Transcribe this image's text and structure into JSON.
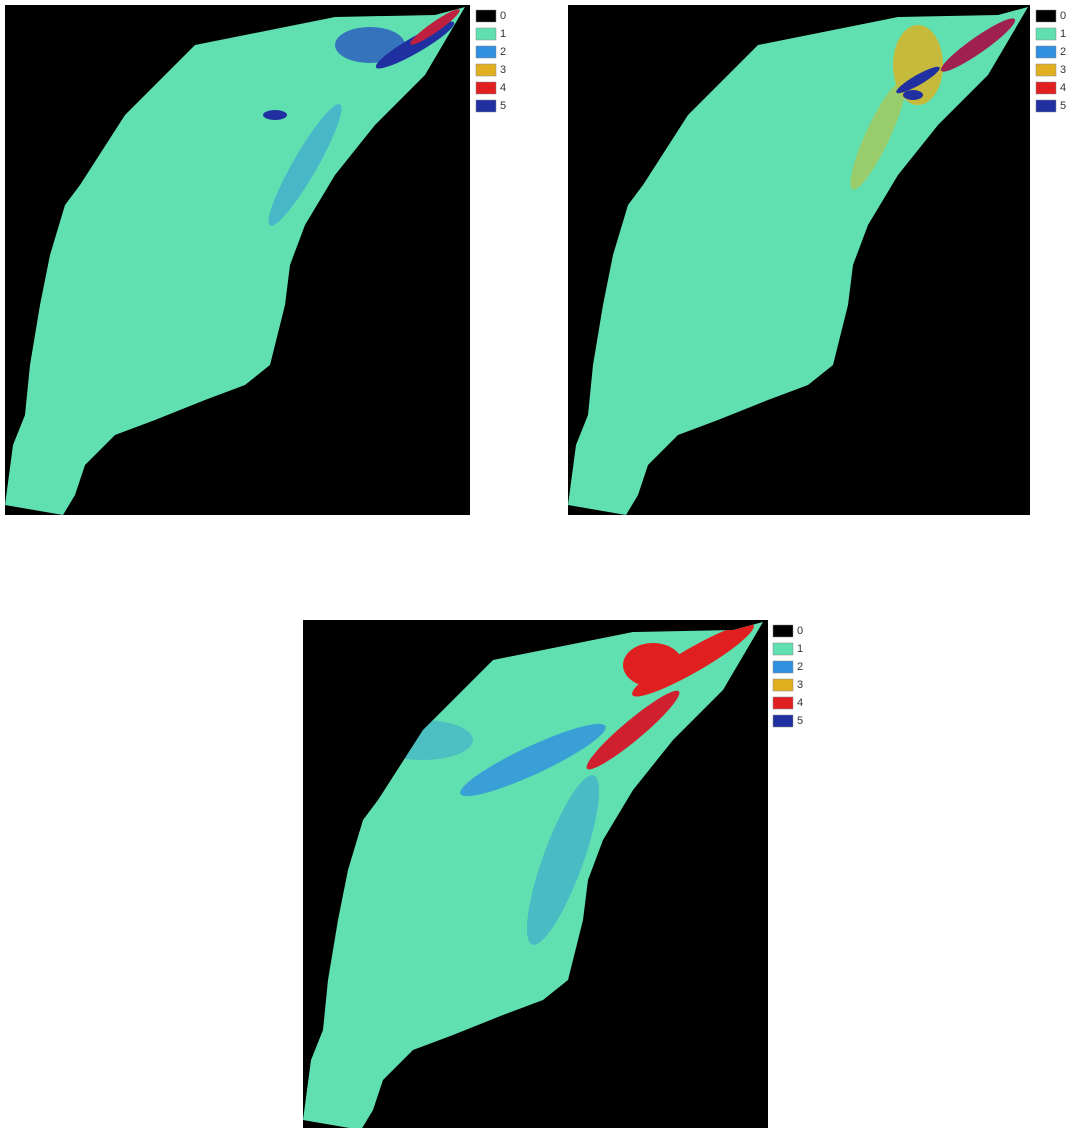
{
  "panels": [
    {
      "legend": [
        {
          "label": "0",
          "color": "#000000"
        },
        {
          "label": "1",
          "color": "#60e0b0"
        },
        {
          "label": "2",
          "color": "#2f8fe0"
        },
        {
          "label": "3",
          "color": "#e0b020"
        },
        {
          "label": "4",
          "color": "#e02020"
        },
        {
          "label": "5",
          "color": "#2030a0"
        }
      ]
    },
    {
      "legend": [
        {
          "label": "0",
          "color": "#000000"
        },
        {
          "label": "1",
          "color": "#60e0b0"
        },
        {
          "label": "2",
          "color": "#2f8fe0"
        },
        {
          "label": "3",
          "color": "#e0b020"
        },
        {
          "label": "4",
          "color": "#e02020"
        },
        {
          "label": "5",
          "color": "#2030a0"
        }
      ]
    },
    {
      "legend": [
        {
          "label": "0",
          "color": "#000000"
        },
        {
          "label": "1",
          "color": "#60e0b0"
        },
        {
          "label": "2",
          "color": "#2f8fe0"
        },
        {
          "label": "3",
          "color": "#e0b020"
        },
        {
          "label": "4",
          "color": "#e02020"
        },
        {
          "label": "5",
          "color": "#2030a0"
        }
      ]
    }
  ]
}
